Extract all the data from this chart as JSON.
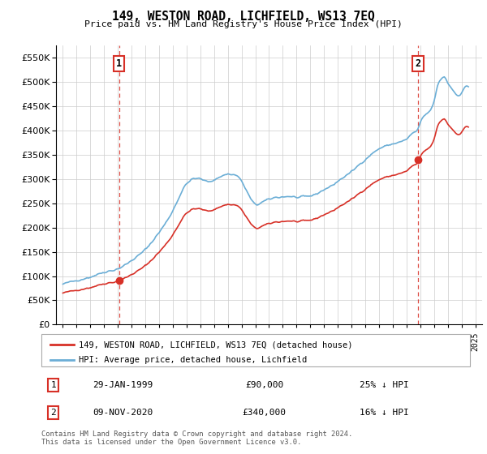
{
  "title": "149, WESTON ROAD, LICHFIELD, WS13 7EQ",
  "subtitle": "Price paid vs. HM Land Registry's House Price Index (HPI)",
  "hpi_label": "HPI: Average price, detached house, Lichfield",
  "property_label": "149, WESTON ROAD, LICHFIELD, WS13 7EQ (detached house)",
  "hpi_color": "#6baed6",
  "property_color": "#d73027",
  "marker_color": "#d73027",
  "vline_color": "#d73027",
  "grid_color": "#cccccc",
  "bg_color": "#ffffff",
  "ylim": [
    0,
    575000
  ],
  "yticks": [
    0,
    50000,
    100000,
    150000,
    200000,
    250000,
    300000,
    350000,
    400000,
    450000,
    500000,
    550000
  ],
  "xlim_start": 1994.5,
  "xlim_end": 2025.5,
  "sale1_x": 1999.08,
  "sale1_y": 90000,
  "sale2_x": 2020.85,
  "sale2_y": 340000,
  "table_row1": [
    "1",
    "29-JAN-1999",
    "£90,000",
    "25% ↓ HPI"
  ],
  "table_row2": [
    "2",
    "09-NOV-2020",
    "£340,000",
    "16% ↓ HPI"
  ],
  "footer": "Contains HM Land Registry data © Crown copyright and database right 2024.\nThis data is licensed under the Open Government Licence v3.0."
}
